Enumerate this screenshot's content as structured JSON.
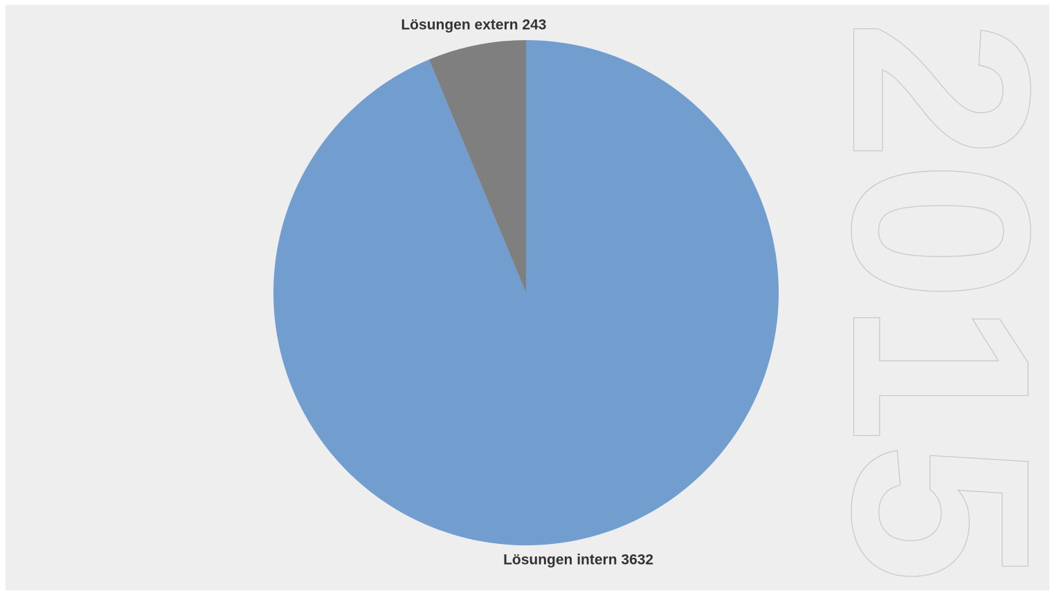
{
  "chart_data": {
    "type": "pie",
    "slices": [
      {
        "name": "Lösungen intern",
        "value": 3632,
        "label": "Lösungen intern 3632",
        "color": "#729ecf"
      },
      {
        "name": "Lösungen extern",
        "value": 243,
        "label": "Lösungen extern 243",
        "color": "#7f7f7f"
      }
    ],
    "start_angle_deg": 0,
    "direction": "clockwise",
    "legend": "none",
    "background_color": "#eeeeee"
  },
  "watermark": {
    "text": "2015",
    "orientation": "rotated-90-clockwise",
    "style": "outline",
    "stroke_color": "#c9c9c9"
  }
}
